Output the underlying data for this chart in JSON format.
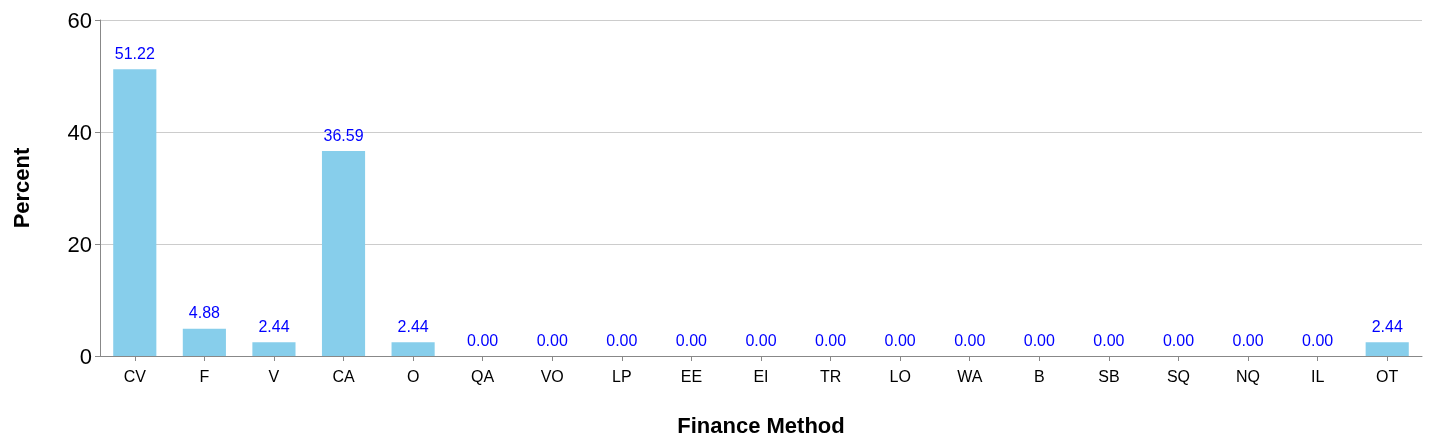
{
  "chart_data": {
    "type": "bar",
    "xlabel": "Finance Method",
    "ylabel": "Percent",
    "categories": [
      "CV",
      "F",
      "V",
      "CA",
      "O",
      "QA",
      "VO",
      "LP",
      "EE",
      "EI",
      "TR",
      "LO",
      "WA",
      "B",
      "SB",
      "SQ",
      "NQ",
      "IL",
      "OT"
    ],
    "values": [
      51.22,
      4.88,
      2.44,
      36.59,
      2.44,
      0,
      0,
      0,
      0,
      0,
      0,
      0,
      0,
      0,
      0,
      0,
      0,
      0,
      2.44
    ],
    "value_labels": [
      "51.22",
      "4.88",
      "2.44",
      "36.59",
      "2.44",
      "0.00",
      "0.00",
      "0.00",
      "0.00",
      "0.00",
      "0.00",
      "0.00",
      "0.00",
      "0.00",
      "0.00",
      "0.00",
      "0.00",
      "0.00",
      "2.44"
    ],
    "color": "#87ceeb",
    "ylim": [
      0,
      60
    ],
    "yticks": [
      0,
      20,
      40,
      60
    ],
    "grid": "y"
  }
}
